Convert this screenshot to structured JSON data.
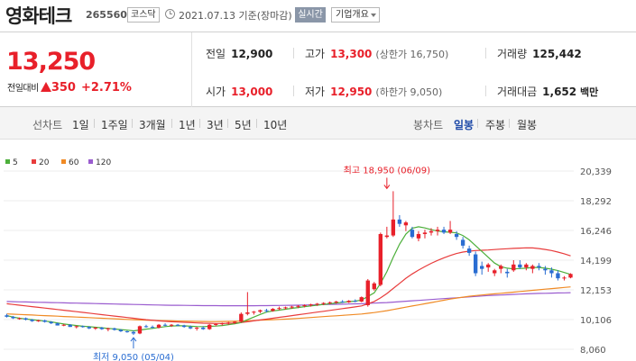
{
  "header": {
    "company_name": "영화테크",
    "stock_code": "265560",
    "market": "코스닥",
    "date": "2021.07.13 기준(장마감)",
    "live_label": "실시간",
    "company_info_label": "기업개요"
  },
  "price": {
    "current": "13,250",
    "diff_label": "전일대비",
    "change": "350",
    "change_rate": "+2.71%"
  },
  "stats": {
    "prev_close_label": "전일",
    "prev_close": "12,900",
    "high_label": "고가",
    "high": "13,300",
    "upper_limit": "(상한가 16,750)",
    "volume_label": "거래량",
    "volume": "125,442",
    "open_label": "시가",
    "open": "13,000",
    "low_label": "저가",
    "low": "12,950",
    "lower_limit": "(하한가 9,050)",
    "amount_label": "거래대금",
    "amount": "1,652",
    "amount_unit": "백만"
  },
  "toolbar": {
    "line_label": "선차트",
    "line_periods": [
      "1일",
      "1주일",
      "3개월",
      "1년",
      "3년",
      "5년",
      "10년"
    ],
    "candle_label": "봉차트",
    "candle_periods": [
      "일봉",
      "주봉",
      "월봉"
    ],
    "selected_candle": "일봉"
  },
  "colors": {
    "up": "#e8202a",
    "down": "#2a6dd2",
    "accent": "#1f4aa8"
  },
  "chart_data": {
    "type": "candlestick",
    "ylim": [
      8060,
      20339
    ],
    "y_ticks": [
      "20,339",
      "18,292",
      "16,246",
      "14,199",
      "12,153",
      "10,106",
      "8,060"
    ],
    "legend": [
      {
        "name": "5",
        "color": "#4caf3a"
      },
      {
        "name": "20",
        "color": "#e83c3c"
      },
      {
        "name": "60",
        "color": "#f08a24"
      },
      {
        "name": "120",
        "color": "#9a5ccf"
      }
    ],
    "annotations": {
      "high": "최고 18,950 (06/09)",
      "low": "최저 9,050 (05/04)"
    },
    "high_value": 18950,
    "low_value": 9050,
    "high_index": 60,
    "low_index": 20,
    "candles": [
      [
        10400,
        10500,
        10250,
        10300
      ],
      [
        10300,
        10350,
        10150,
        10200
      ],
      [
        10200,
        10250,
        10100,
        10200
      ],
      [
        10200,
        10250,
        10050,
        10100
      ],
      [
        10100,
        10150,
        9950,
        10000
      ],
      [
        10000,
        10100,
        9950,
        10050
      ],
      [
        10050,
        10100,
        9900,
        9950
      ],
      [
        9950,
        10000,
        9800,
        9850
      ],
      [
        9850,
        9900,
        9700,
        9700
      ],
      [
        9700,
        9800,
        9650,
        9750
      ],
      [
        9750,
        9800,
        9600,
        9600
      ],
      [
        9600,
        9700,
        9500,
        9650
      ],
      [
        9650,
        9700,
        9550,
        9600
      ],
      [
        9600,
        9650,
        9450,
        9500
      ],
      [
        9500,
        9600,
        9400,
        9550
      ],
      [
        9550,
        9600,
        9400,
        9450
      ],
      [
        9450,
        9550,
        9300,
        9500
      ],
      [
        9500,
        9550,
        9350,
        9400
      ],
      [
        9400,
        9450,
        9250,
        9300
      ],
      [
        9300,
        9350,
        9200,
        9250
      ],
      [
        9250,
        9350,
        9050,
        9150
      ],
      [
        9150,
        9700,
        9100,
        9650
      ],
      [
        9650,
        9750,
        9550,
        9600
      ],
      [
        9600,
        9700,
        9500,
        9550
      ],
      [
        9550,
        9800,
        9500,
        9750
      ],
      [
        9750,
        9850,
        9650,
        9700
      ],
      [
        9700,
        9800,
        9600,
        9750
      ],
      [
        9750,
        9800,
        9650,
        9700
      ],
      [
        9700,
        9750,
        9550,
        9600
      ],
      [
        9600,
        9700,
        9450,
        9500
      ],
      [
        9500,
        9600,
        9350,
        9550
      ],
      [
        9550,
        9650,
        9400,
        9450
      ],
      [
        9450,
        9800,
        9400,
        9750
      ],
      [
        9750,
        9850,
        9650,
        9800
      ],
      [
        9800,
        9900,
        9700,
        9850
      ],
      [
        9850,
        9950,
        9750,
        9900
      ],
      [
        9900,
        10000,
        9800,
        9950
      ],
      [
        9950,
        10600,
        9900,
        10500
      ],
      [
        10500,
        12000,
        10400,
        10600
      ],
      [
        10600,
        10700,
        10450,
        10650
      ],
      [
        10650,
        10800,
        10550,
        10750
      ],
      [
        10750,
        10850,
        10600,
        10700
      ],
      [
        10700,
        10900,
        10650,
        10850
      ],
      [
        10850,
        11000,
        10750,
        10900
      ],
      [
        10900,
        11000,
        10800,
        10950
      ],
      [
        10950,
        11050,
        10850,
        11000
      ],
      [
        11000,
        11100,
        10900,
        11050
      ],
      [
        11050,
        11150,
        10950,
        11100
      ],
      [
        11100,
        11200,
        11000,
        11150
      ],
      [
        11150,
        11250,
        11050,
        11200
      ],
      [
        11200,
        11300,
        11100,
        11250
      ],
      [
        11250,
        11350,
        11150,
        11300
      ],
      [
        11300,
        11400,
        11200,
        11350
      ],
      [
        11350,
        11450,
        11250,
        11300
      ],
      [
        11300,
        11450,
        11250,
        11400
      ],
      [
        11400,
        11500,
        11300,
        11350
      ],
      [
        11350,
        11700,
        11300,
        11650
      ],
      [
        11100,
        12900,
        11000,
        12800
      ],
      [
        12200,
        12700,
        12100,
        12600
      ],
      [
        12500,
        16100,
        12400,
        16000
      ],
      [
        15800,
        16500,
        15700,
        15900
      ],
      [
        15900,
        18950,
        15800,
        17000
      ],
      [
        17000,
        17300,
        16500,
        16700
      ],
      [
        16600,
        16900,
        16200,
        16800
      ],
      [
        16300,
        16500,
        15700,
        15800
      ],
      [
        15700,
        16200,
        15500,
        16000
      ],
      [
        16000,
        16300,
        15700,
        16100
      ],
      [
        16100,
        16400,
        15900,
        16200
      ],
      [
        16200,
        16500,
        15900,
        16300
      ],
      [
        16300,
        16500,
        16000,
        16100
      ],
      [
        16100,
        16900,
        16000,
        16300
      ],
      [
        16000,
        16200,
        15600,
        15800
      ],
      [
        15600,
        15800,
        15000,
        15200
      ],
      [
        15000,
        15200,
        14500,
        14700
      ],
      [
        14600,
        14800,
        13100,
        13300
      ],
      [
        13800,
        14100,
        13200,
        13600
      ],
      [
        13700,
        14000,
        13400,
        13900
      ],
      [
        13300,
        13600,
        13100,
        13500
      ],
      [
        13600,
        13900,
        13300,
        13800
      ],
      [
        13400,
        13600,
        13000,
        13300
      ],
      [
        13500,
        14200,
        13400,
        13900
      ],
      [
        13900,
        14200,
        13600,
        13700
      ],
      [
        13700,
        14000,
        13500,
        13900
      ],
      [
        13600,
        13900,
        13300,
        13800
      ],
      [
        13800,
        14000,
        13500,
        13700
      ],
      [
        13600,
        13800,
        13200,
        13500
      ],
      [
        13500,
        13700,
        13000,
        13300
      ],
      [
        13300,
        13500,
        12800,
        12950
      ],
      [
        12950,
        13100,
        12800,
        13000
      ],
      [
        13000,
        13300,
        12950,
        13250
      ]
    ],
    "ma5": [
      10380,
      10280,
      10200,
      10150,
      10100,
      10050,
      10000,
      9950,
      9880,
      9800,
      9750,
      9700,
      9650,
      9620,
      9580,
      9540,
      9500,
      9460,
      9420,
      9380,
      9330,
      9390,
      9450,
      9500,
      9560,
      9620,
      9660,
      9680,
      9680,
      9650,
      9630,
      9620,
      9640,
      9660,
      9700,
      9760,
      9820,
      9900,
      10100,
      10280,
      10460,
      10620,
      10700,
      10760,
      10820,
      10880,
      10940,
      11000,
      11050,
      11100,
      11150,
      11200,
      11250,
      11300,
      11340,
      11380,
      11450,
      11700,
      11950,
      12600,
      13400,
      14400,
      15300,
      16000,
      16400,
      16500,
      16420,
      16300,
      16200,
      16150,
      16120,
      16080,
      15900,
      15600,
      15200,
      14800,
      14400,
      14000,
      13750,
      13650,
      13600,
      13620,
      13650,
      13700,
      13700,
      13650,
      13580,
      13480,
      13350,
      13220
    ],
    "ma20": [
      11200,
      11150,
      11100,
      11050,
      11000,
      10950,
      10900,
      10850,
      10800,
      10750,
      10700,
      10650,
      10600,
      10550,
      10500,
      10450,
      10400,
      10350,
      10300,
      10250,
      10200,
      10150,
      10100,
      10060,
      10020,
      9990,
      9960,
      9940,
      9920,
      9900,
      9880,
      9860,
      9850,
      9840,
      9840,
      9850,
      9870,
      9900,
      9960,
      10020,
      10080,
      10140,
      10200,
      10260,
      10320,
      10380,
      10440,
      10500,
      10560,
      10620,
      10680,
      10740,
      10800,
      10860,
      10920,
      10980,
      11050,
      11200,
      11350,
      11600,
      11900,
      12250,
      12600,
      12950,
      13250,
      13520,
      13760,
      13980,
      14180,
      14360,
      14520,
      14660,
      14760,
      14820,
      14860,
      14880,
      14900,
      14930,
      14960,
      14990,
      15010,
      15030,
      15050,
      15040,
      15000,
      14940,
      14860,
      14760,
      14640,
      14500
    ],
    "ma60": [
      10500,
      10480,
      10460,
      10440,
      10420,
      10400,
      10380,
      10360,
      10340,
      10320,
      10300,
      10280,
      10260,
      10240,
      10220,
      10200,
      10180,
      10160,
      10140,
      10120,
      10100,
      10080,
      10060,
      10050,
      10040,
      10030,
      10020,
      10010,
      10000,
      9990,
      9980,
      9975,
      9970,
      9970,
      9975,
      9980,
      9990,
      10000,
      10020,
      10040,
      10060,
      10080,
      10100,
      10120,
      10140,
      10160,
      10190,
      10220,
      10250,
      10280,
      10310,
      10340,
      10370,
      10400,
      10430,
      10460,
      10490,
      10540,
      10590,
      10650,
      10720,
      10800,
      10880,
      10960,
      11040,
      11120,
      11200,
      11280,
      11360,
      11440,
      11520,
      11590,
      11650,
      11710,
      11760,
      11800,
      11840,
      11880,
      11920,
      11960,
      12000,
      12040,
      12080,
      12120,
      12160,
      12200,
      12240,
      12280,
      12320,
      12360
    ],
    "ma120": [
      11350,
      11340,
      11330,
      11320,
      11310,
      11300,
      11290,
      11280,
      11270,
      11260,
      11250,
      11240,
      11230,
      11220,
      11210,
      11200,
      11190,
      11180,
      11170,
      11160,
      11150,
      11140,
      11130,
      11120,
      11110,
      11100,
      11095,
      11090,
      11085,
      11080,
      11075,
      11070,
      11068,
      11066,
      11064,
      11062,
      11060,
      11060,
      11062,
      11064,
      11066,
      11070,
      11075,
      11080,
      11085,
      11090,
      11100,
      11110,
      11120,
      11130,
      11140,
      11150,
      11160,
      11170,
      11180,
      11190,
      11200,
      11220,
      11240,
      11260,
      11280,
      11310,
      11340,
      11370,
      11400,
      11430,
      11460,
      11490,
      11520,
      11550,
      11580,
      11610,
      11640,
      11670,
      11700,
      11730,
      11760,
      11780,
      11800,
      11820,
      11840,
      11860,
      11880,
      11900,
      11910,
      11920,
      11930,
      11940,
      11950,
      11960
    ]
  }
}
